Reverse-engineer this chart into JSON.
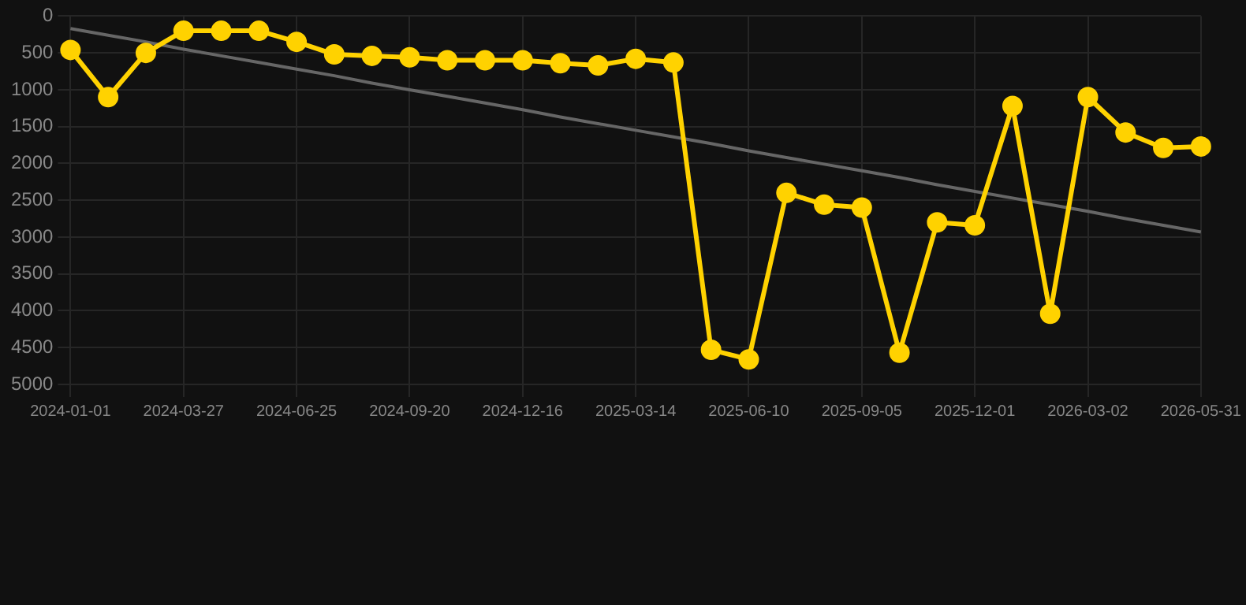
{
  "chart_data": {
    "type": "line",
    "categories": [
      "2024-01-01",
      null,
      null,
      "2024-03-27",
      null,
      null,
      "2024-06-25",
      null,
      null,
      "2024-09-20",
      null,
      null,
      "2024-12-16",
      null,
      null,
      "2025-03-14",
      null,
      null,
      "2025-06-10",
      null,
      null,
      "2025-09-05",
      null,
      null,
      "2025-12-01",
      null,
      null,
      "2026-03-02",
      null,
      null,
      "2026-05-31"
    ],
    "series": [
      {
        "color": "#ffd200",
        "values": [
          460,
          1100,
          500,
          200,
          200,
          200,
          350,
          520,
          540,
          560,
          600,
          600,
          600,
          640,
          670,
          580,
          630,
          4530,
          4660,
          2400,
          2560,
          2600,
          4570,
          2800,
          2840,
          1220,
          4040,
          1100,
          1580,
          1790,
          1770
        ],
        "marker": "circle"
      },
      {
        "type": "line",
        "color": "#666666",
        "values": [
          170,
          260,
          350,
          450,
          540,
          630,
          720,
          810,
          910,
          1000,
          1090,
          1180,
          1270,
          1370,
          1460,
          1550,
          1640,
          1730,
          1830,
          1920,
          2010,
          2100,
          2190,
          2290,
          2380,
          2470,
          2560,
          2650,
          2750,
          2840,
          2930
        ],
        "marker": "none"
      }
    ],
    "ylim": [
      5000,
      0
    ],
    "yticks": [
      0,
      500,
      1000,
      1500,
      2000,
      2500,
      3000,
      3500,
      4000,
      4500,
      5000
    ],
    "grid": true,
    "legend": false
  }
}
